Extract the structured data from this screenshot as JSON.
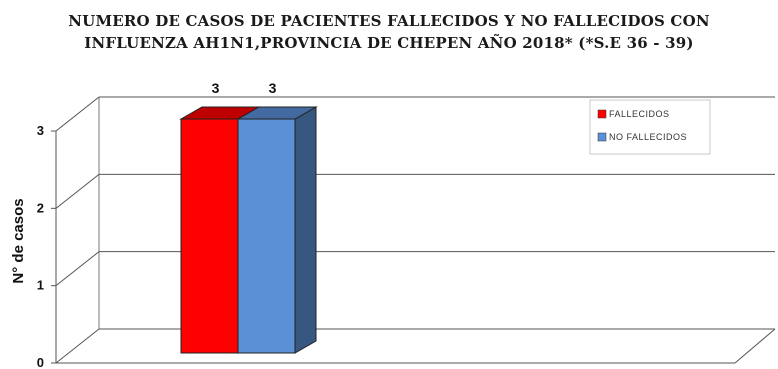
{
  "chart_data": {
    "type": "bar",
    "title_line1": "NUMERO DE CASOS DE PACIENTES FALLECIDOS Y NO FALLECIDOS CON",
    "title_line2": "INFLUENZA AH1N1,PROVINCIA DE CHEPEN AÑO 2018* (*S.E 36 - 39)",
    "ylabel": "N° de casos",
    "xlabel": "",
    "ylim": [
      0,
      3
    ],
    "yticks": [
      "0",
      "1",
      "2",
      "3"
    ],
    "grid": true,
    "legend_position": "top-right",
    "three_d": true,
    "series": [
      {
        "name": "FALLECIDOS",
        "values": [
          3
        ],
        "color": "#ff0000"
      },
      {
        "name": "NO FALLECIDOS",
        "values": [
          3
        ],
        "color": "#5b8fd6"
      }
    ],
    "data_labels": [
      "3",
      "3"
    ]
  }
}
